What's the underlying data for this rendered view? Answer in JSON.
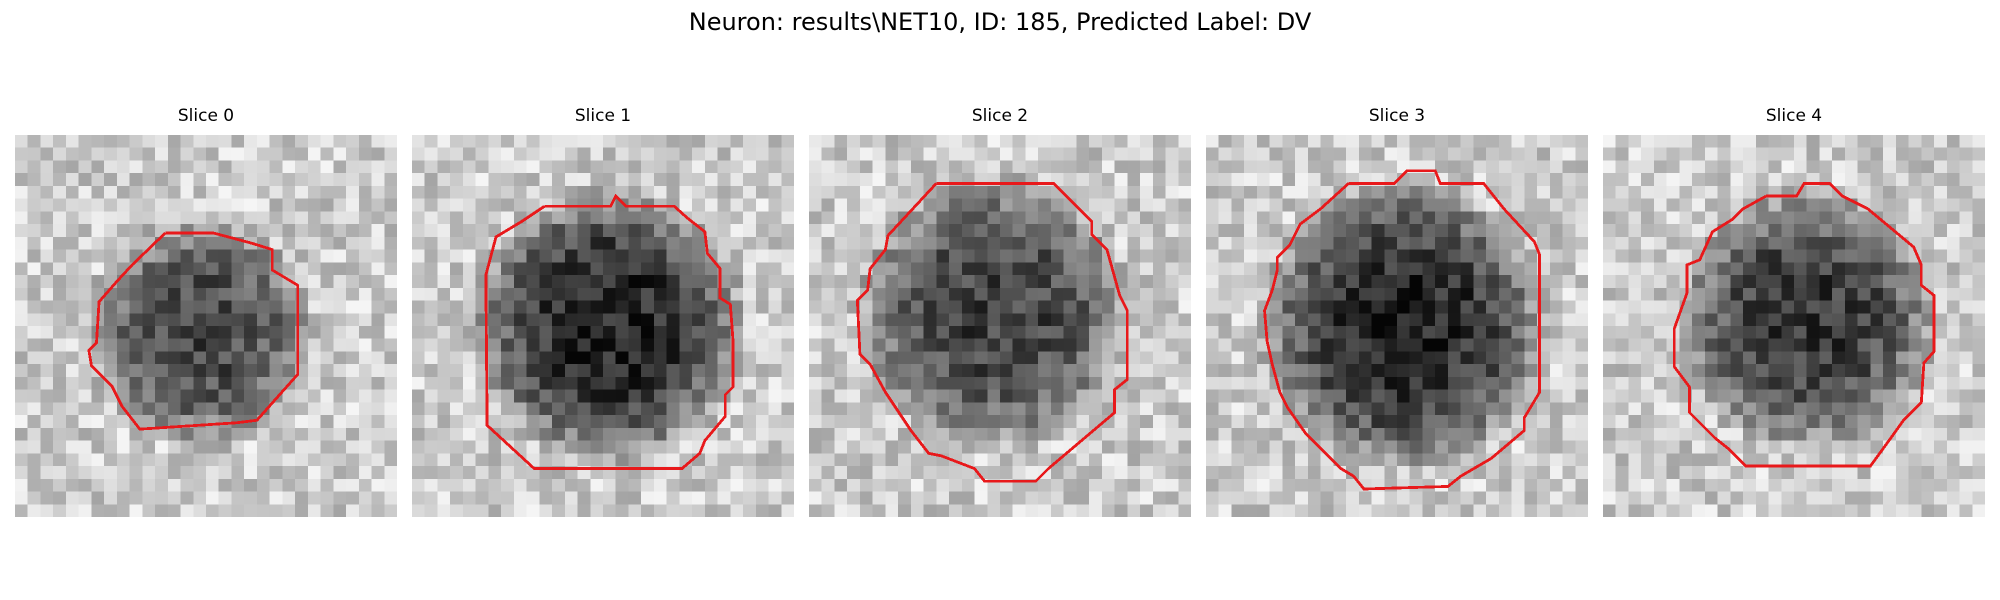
{
  "figure": {
    "suptitle": "Neuron: results\\NET10, ID: 185, Predicted Label: DV"
  },
  "panels": [
    {
      "title": "Slice 0"
    },
    {
      "title": "Slice 1"
    },
    {
      "title": "Slice 2"
    },
    {
      "title": "Slice 3"
    },
    {
      "title": "Slice 4"
    }
  ],
  "contour_color": "#e8191b",
  "image_colormap": "grayscale"
}
